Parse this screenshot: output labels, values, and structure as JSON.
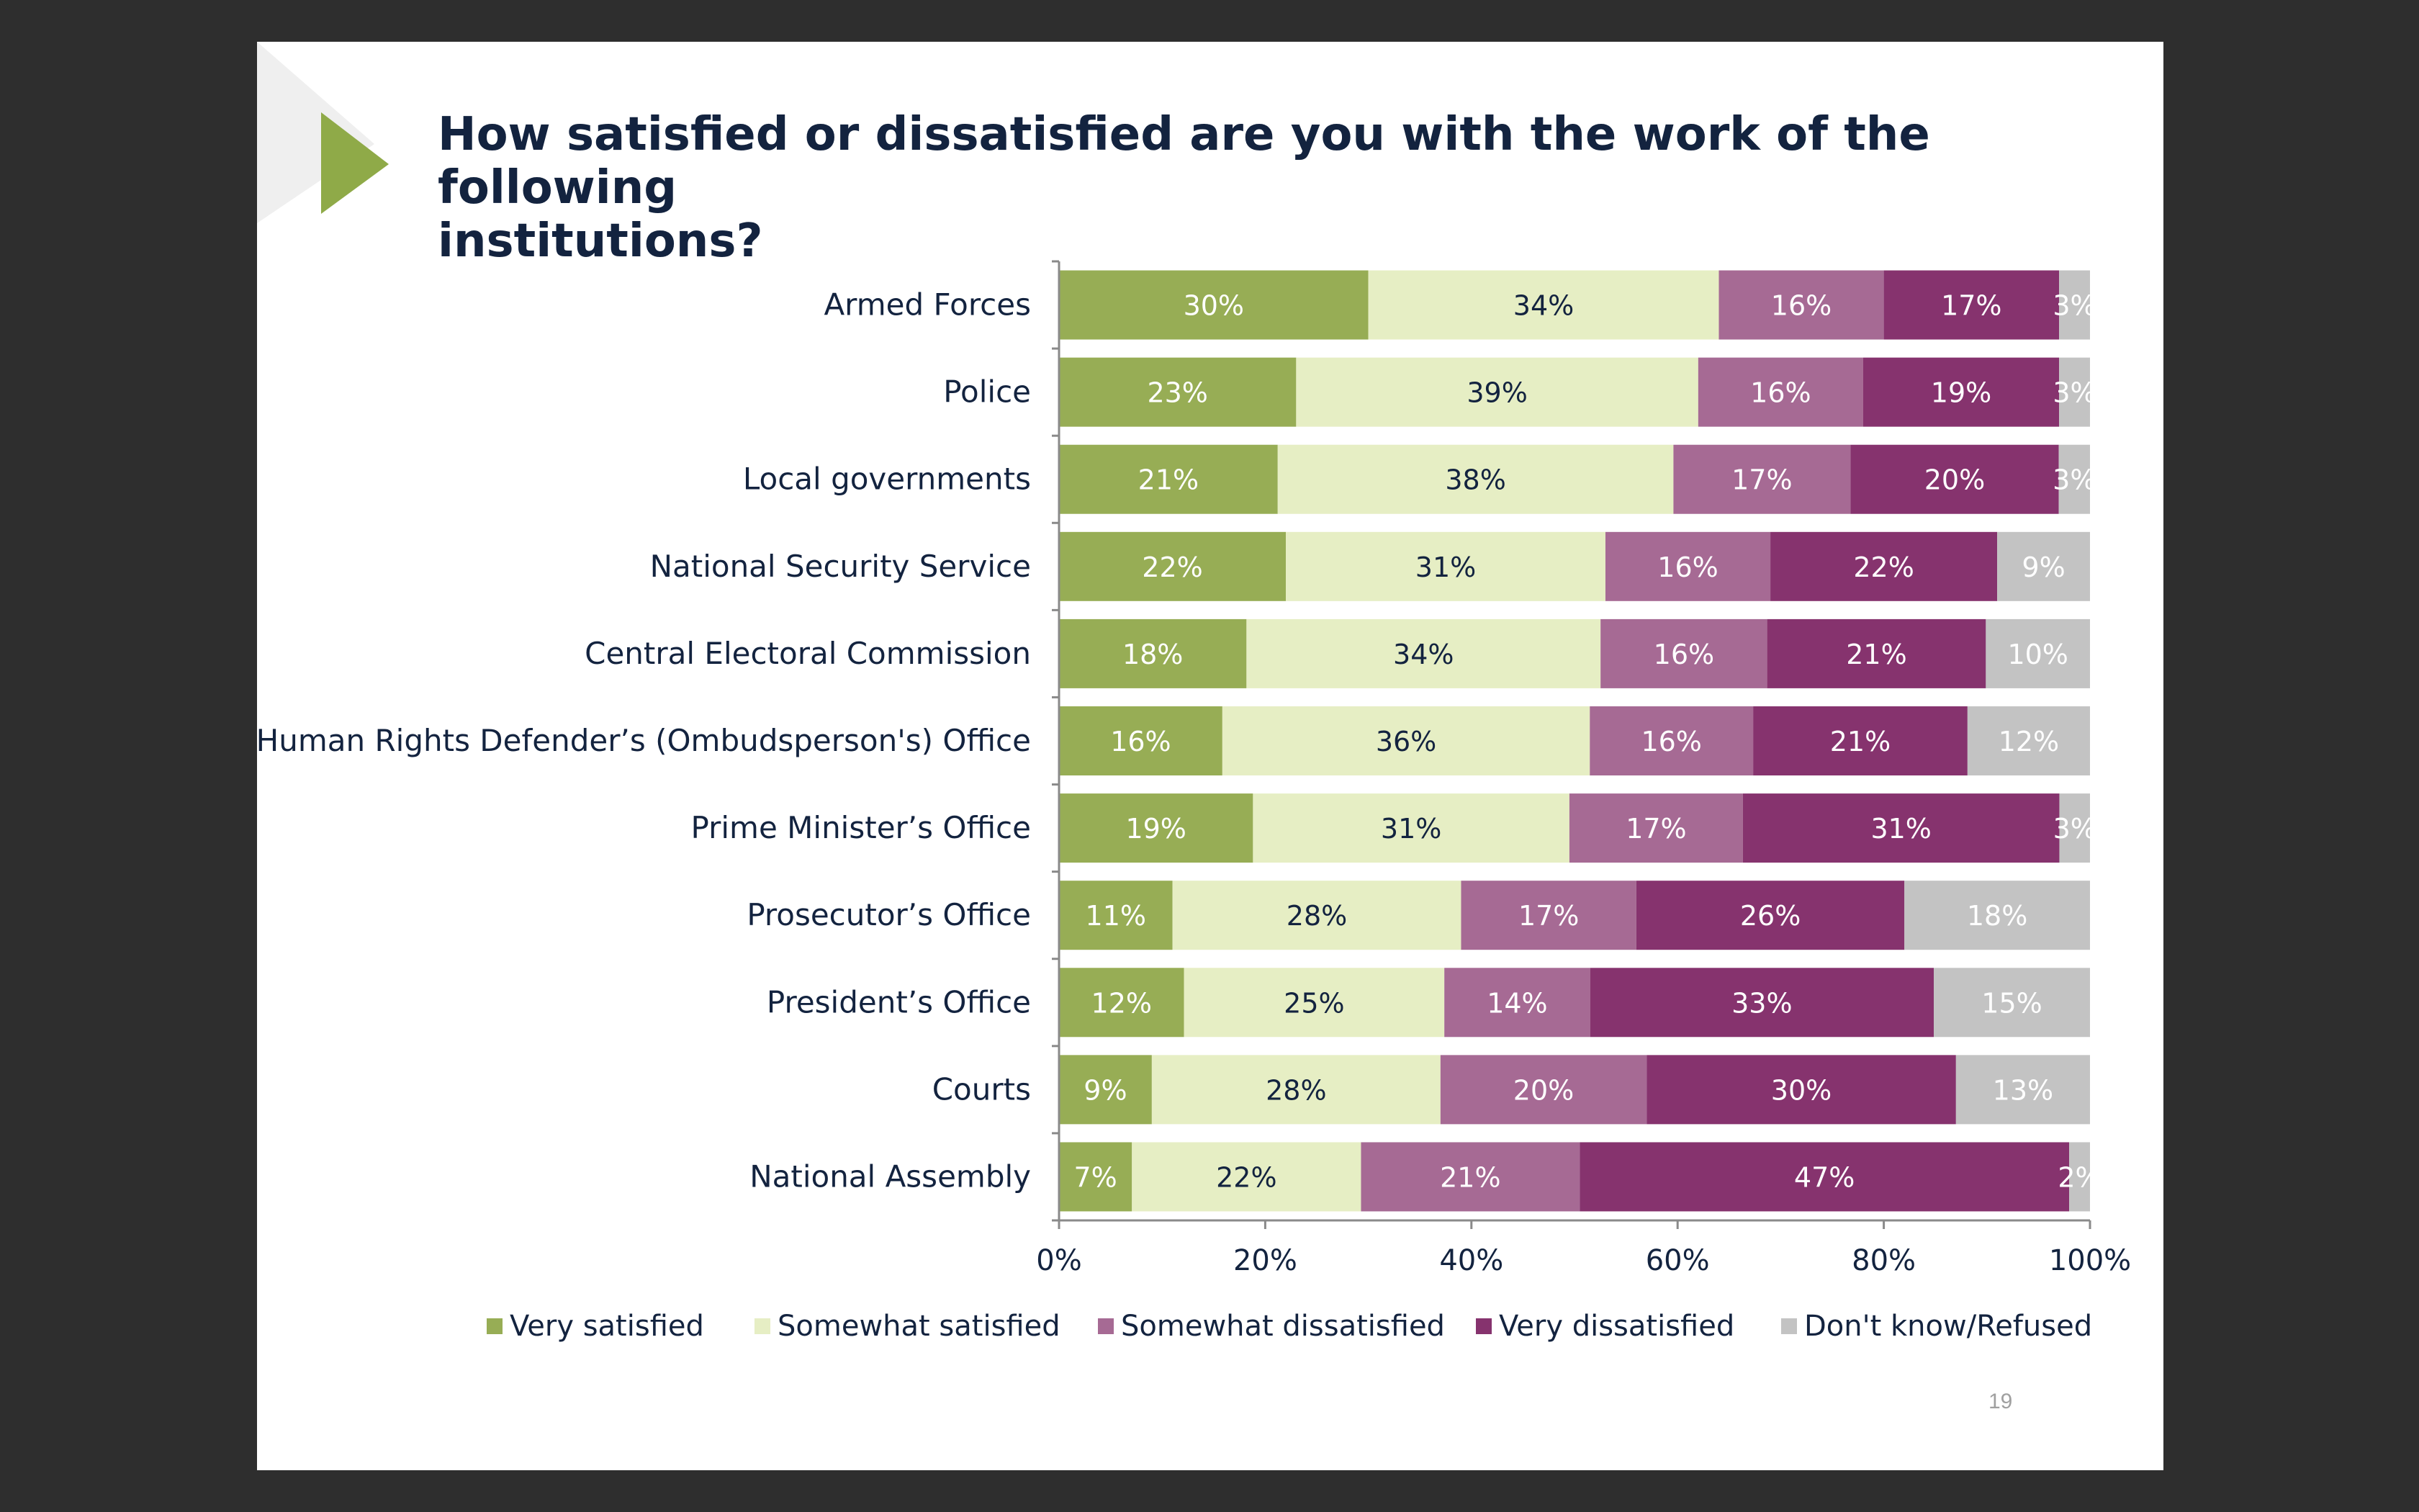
{
  "slide": {
    "title_line1": "How satisfied or dissatisfied are you with the work of the following",
    "title_line2": "institutions?",
    "page_number": "19"
  },
  "colors": {
    "background": "#2e2e2e",
    "slide": "#ffffff",
    "accent_triangle": "#8faa48",
    "text_dark": "#13233f"
  },
  "chart_data": {
    "type": "bar",
    "orientation": "horizontal",
    "stacked": true,
    "title": "How satisfied or dissatisfied are you with the work of the following institutions?",
    "categories": [
      "Armed Forces",
      "Police",
      "Local governments",
      "National Security Service",
      "Central Electoral Commission",
      "Human Rights Defender’s (Ombudsperson's) Office",
      "Prime Minister’s Office",
      "Prosecutor’s Office",
      "President’s Office",
      "Courts",
      "National Assembly"
    ],
    "series": [
      {
        "name": "Very satisfied",
        "color": "#97ad55",
        "label_color": "#ffffff",
        "values": [
          30,
          23,
          21,
          22,
          18,
          16,
          19,
          11,
          12,
          9,
          7
        ]
      },
      {
        "name": "Somewhat satisfied",
        "color": "#e6eec4",
        "label_color": "#13233f",
        "values": [
          34,
          39,
          38,
          31,
          34,
          36,
          31,
          28,
          25,
          28,
          22
        ]
      },
      {
        "name": "Somewhat dissatisfied",
        "color": "#a66a94",
        "label_color": "#ffffff",
        "values": [
          16,
          16,
          17,
          16,
          16,
          16,
          17,
          17,
          14,
          20,
          21
        ]
      },
      {
        "name": "Very dissatisfied",
        "color": "#86336e",
        "label_color": "#ffffff",
        "values": [
          17,
          19,
          20,
          22,
          21,
          21,
          31,
          26,
          33,
          30,
          47
        ]
      },
      {
        "name": "Don't know/Refused",
        "color": "#c3c3c3",
        "label_color": "#ffffff",
        "values": [
          3,
          3,
          3,
          9,
          10,
          12,
          3,
          18,
          15,
          13,
          2
        ]
      }
    ],
    "xlim": [
      0,
      100
    ],
    "x_ticks": [
      "0%",
      "20%",
      "40%",
      "60%",
      "80%",
      "100%"
    ],
    "legend_position": "bottom",
    "grid": false
  }
}
